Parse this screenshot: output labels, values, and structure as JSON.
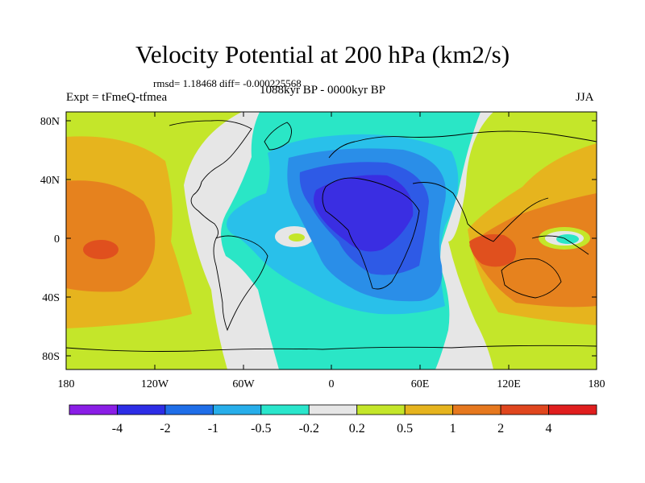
{
  "title": "Velocity Potential at 200 hPa (km2/s)",
  "stats": "rmsd= 1.18468  diff= -0.000225568",
  "experiment": "Expt = tFmeQ-tfmea",
  "period": "1088kyr BP - 0000kyr BP",
  "season": "JJA",
  "lon_ticks": [
    "180",
    "120W",
    "60W",
    "0",
    "60E",
    "120E",
    "180"
  ],
  "lat_ticks": [
    "80N",
    "40N",
    "0",
    "40S",
    "80S"
  ],
  "colorbar": {
    "labels": [
      "-4",
      "-2",
      "-1",
      "-0.5",
      "-0.2",
      "0.2",
      "0.5",
      "1",
      "2",
      "4"
    ],
    "colors": [
      "#8a1ee6",
      "#2d2de6",
      "#1f6ee8",
      "#27aeea",
      "#2ae6cc",
      "#e6e6e6",
      "#c4e62a",
      "#e6b41e",
      "#e6781e",
      "#e0461e",
      "#e01e1e"
    ]
  },
  "palette": {
    "neg4": "#3a2ee2",
    "neg2": "#2e5ae6",
    "neg1": "#2a8ee8",
    "neg05": "#29c0ea",
    "neg02": "#2ae6c6",
    "zero": "#e6e6e6",
    "pos02": "#c4e62a",
    "pos05": "#e6b41e",
    "pos1": "#e6821e",
    "pos2": "#e0501e",
    "pos4": "#e01e1e"
  }
}
